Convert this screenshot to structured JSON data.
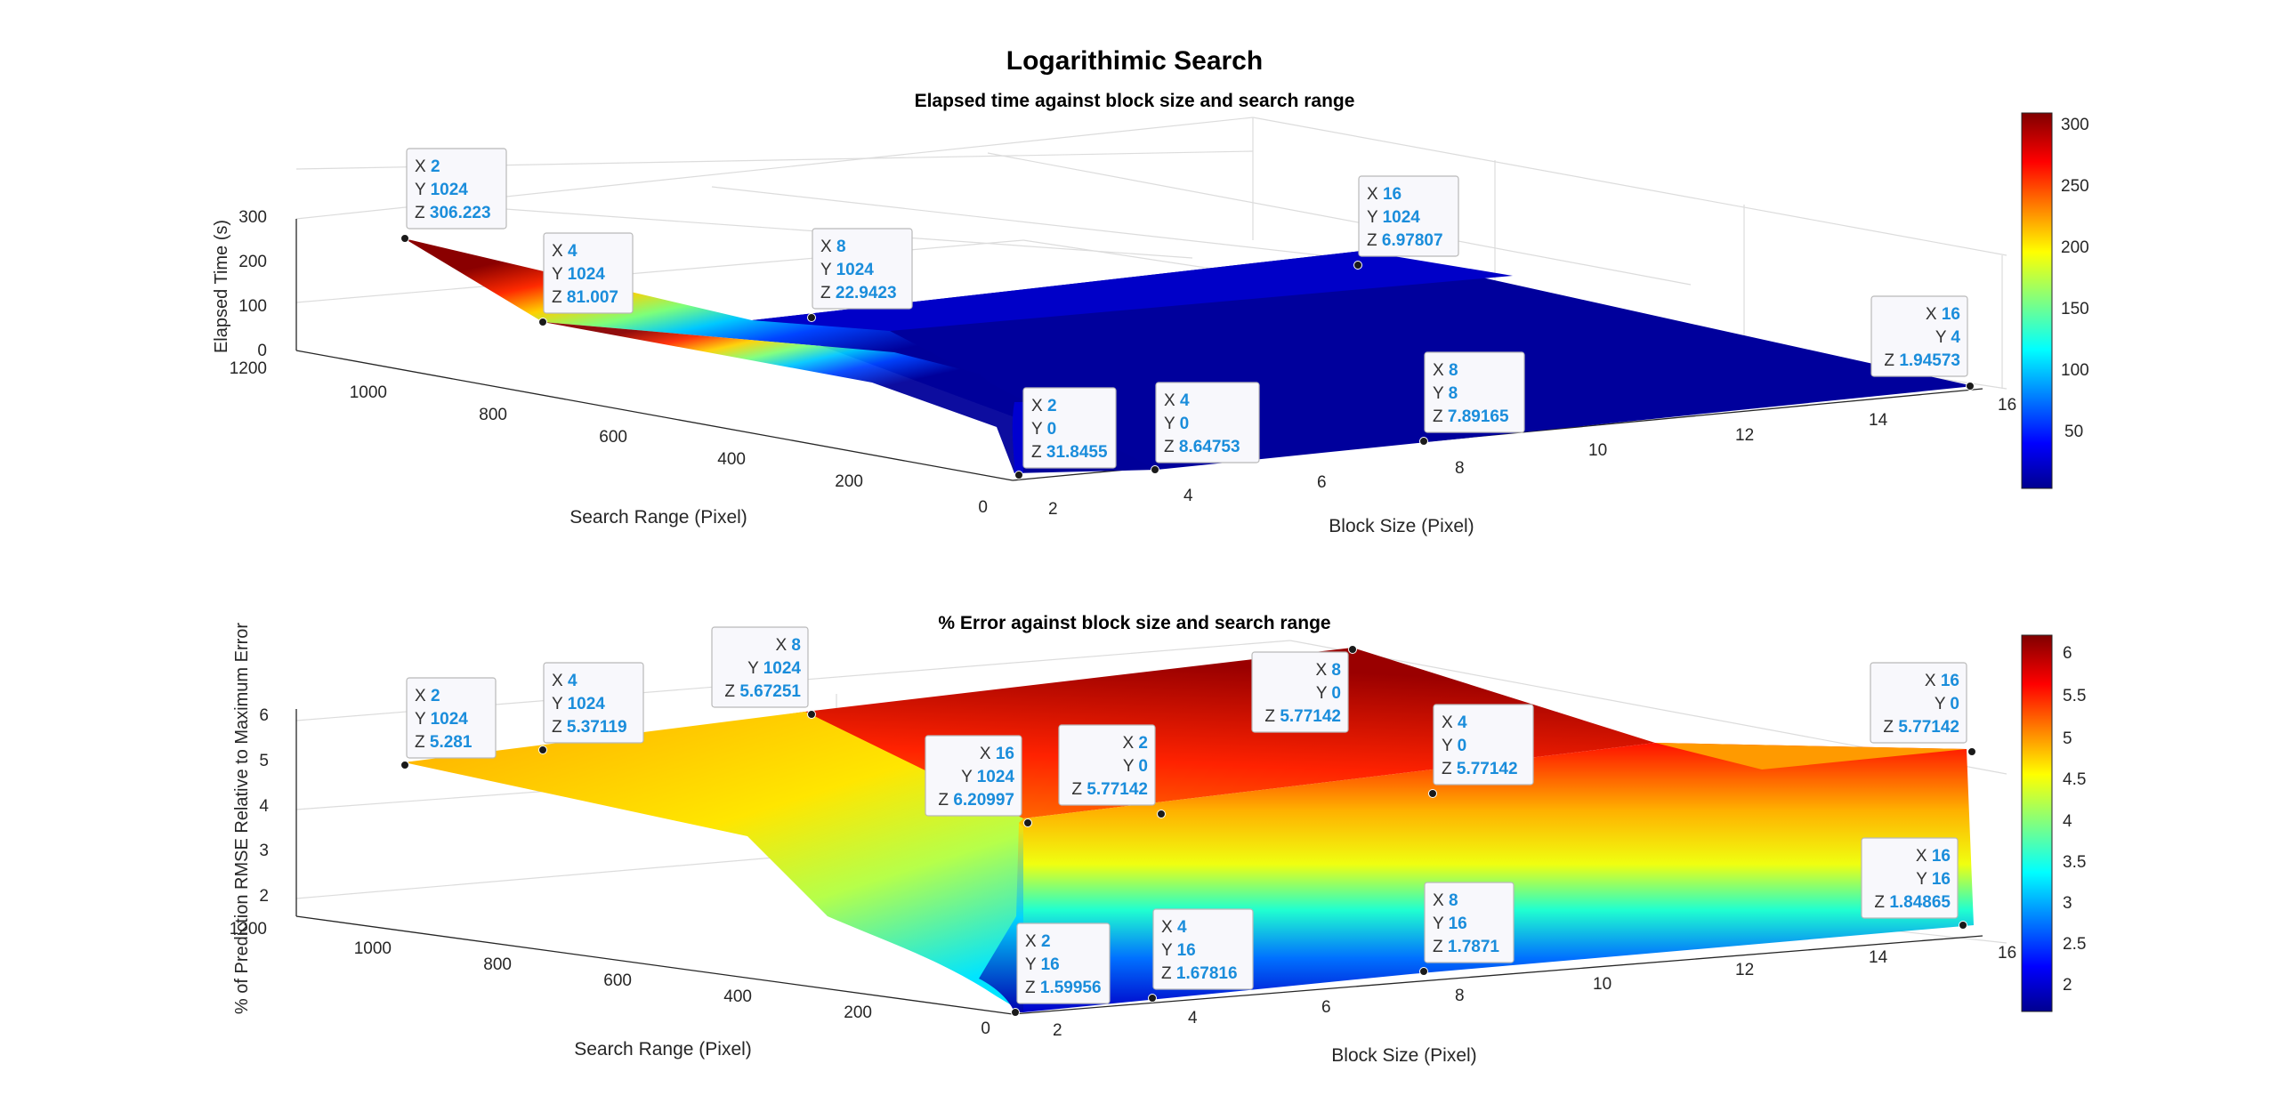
{
  "figure": {
    "title": "Logarithimic Search"
  },
  "chart_data": [
    {
      "type": "surface",
      "title": "Elapsed time against block size and search range",
      "xlabel": "Block Size (Pixel)",
      "ylabel": "Search Range (Pixel)",
      "zlabel": "Elapsed Time (s)",
      "xlim": [
        2,
        16
      ],
      "ylim": [
        0,
        1200
      ],
      "zlim": [
        0,
        300
      ],
      "xticks": [
        "2",
        "4",
        "6",
        "8",
        "10",
        "12",
        "14",
        "16"
      ],
      "yticks": [
        "0",
        "200",
        "400",
        "600",
        "800",
        "1000",
        "1200"
      ],
      "zticks": [
        "0",
        "100",
        "200",
        "300"
      ],
      "colormap": "jet",
      "colorbar": {
        "limits": [
          2,
          306.223
        ],
        "ticks": [
          "50",
          "100",
          "150",
          "200",
          "250",
          "300"
        ]
      },
      "grid": true,
      "datatips": [
        {
          "x": 2,
          "y": 1024,
          "z": "306.223"
        },
        {
          "x": 4,
          "y": 1024,
          "z": "81.007"
        },
        {
          "x": 8,
          "y": 1024,
          "z": "22.9423"
        },
        {
          "x": 16,
          "y": 1024,
          "z": "6.97807"
        },
        {
          "x": 2,
          "y": 0,
          "z": "31.8455"
        },
        {
          "x": 4,
          "y": 0,
          "z": "8.64753"
        },
        {
          "x": 8,
          "y": 8,
          "z": "7.89165"
        },
        {
          "x": 16,
          "y": 4,
          "z": "1.94573"
        }
      ]
    },
    {
      "type": "surface",
      "title": "% Error against block size and search range",
      "xlabel": "Block Size (Pixel)",
      "ylabel": "Search Range (Pixel)",
      "zlabel": "% of Prediction RMSE Relative to Maximum Error",
      "xlim": [
        2,
        16
      ],
      "ylim": [
        0,
        1200
      ],
      "zlim": [
        1.5,
        6.2
      ],
      "xticks": [
        "2",
        "4",
        "6",
        "8",
        "10",
        "12",
        "14",
        "16"
      ],
      "yticks": [
        "0",
        "200",
        "400",
        "600",
        "800",
        "1000",
        "1200"
      ],
      "zticks": [
        "2",
        "3",
        "4",
        "5",
        "6"
      ],
      "colormap": "jet",
      "colorbar": {
        "limits": [
          1.59956,
          6.20997
        ],
        "ticks": [
          "2",
          "2.5",
          "3",
          "3.5",
          "4",
          "4.5",
          "5",
          "5.5",
          "6"
        ]
      },
      "grid": true,
      "datatips": [
        {
          "x": 2,
          "y": 1024,
          "z": "5.281"
        },
        {
          "x": 4,
          "y": 1024,
          "z": "5.37119"
        },
        {
          "x": 8,
          "y": 1024,
          "z": "5.67251"
        },
        {
          "x": 16,
          "y": 1024,
          "z": "6.20997"
        },
        {
          "x": 2,
          "y": 0,
          "z": "5.77142"
        },
        {
          "x": 4,
          "y": 0,
          "z": "5.77142"
        },
        {
          "x": 8,
          "y": 0,
          "z": "5.77142"
        },
        {
          "x": 16,
          "y": 0,
          "z": "5.77142"
        },
        {
          "x": 2,
          "y": 16,
          "z": "1.59956"
        },
        {
          "x": 4,
          "y": 16,
          "z": "1.67816"
        },
        {
          "x": 8,
          "y": 16,
          "z": "1.7871"
        },
        {
          "x": 16,
          "y": 16,
          "z": "1.84865"
        }
      ]
    }
  ]
}
